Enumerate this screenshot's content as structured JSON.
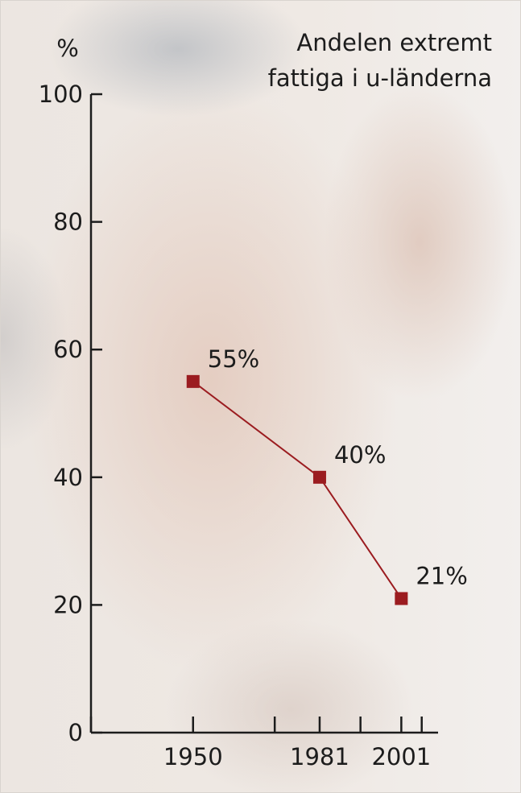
{
  "chart_data": {
    "type": "line",
    "title_lines": [
      "Andelen extremt",
      "fattiga i u-länderna"
    ],
    "ylabel": "%",
    "xlabel": "",
    "ylim": [
      0,
      100
    ],
    "xlim": [
      1925,
      2010
    ],
    "y_ticks": [
      0,
      20,
      40,
      60,
      80,
      100
    ],
    "x_ticks": [
      1925,
      1950,
      1970,
      1981,
      1991,
      2001,
      2006
    ],
    "x_tick_labels": [
      {
        "x": 1950,
        "label": "1950"
      },
      {
        "x": 1981,
        "label": "1981"
      },
      {
        "x": 2001,
        "label": "2001"
      }
    ],
    "series": [
      {
        "x": [
          1950,
          1981,
          2001
        ],
        "values": [
          55,
          40,
          21
        ],
        "labels": [
          "55%",
          "40%",
          "21%"
        ]
      }
    ],
    "colors": {
      "series": "#9b1c20",
      "axis": "#1c1c1c"
    },
    "grid": false,
    "legend": "none"
  }
}
